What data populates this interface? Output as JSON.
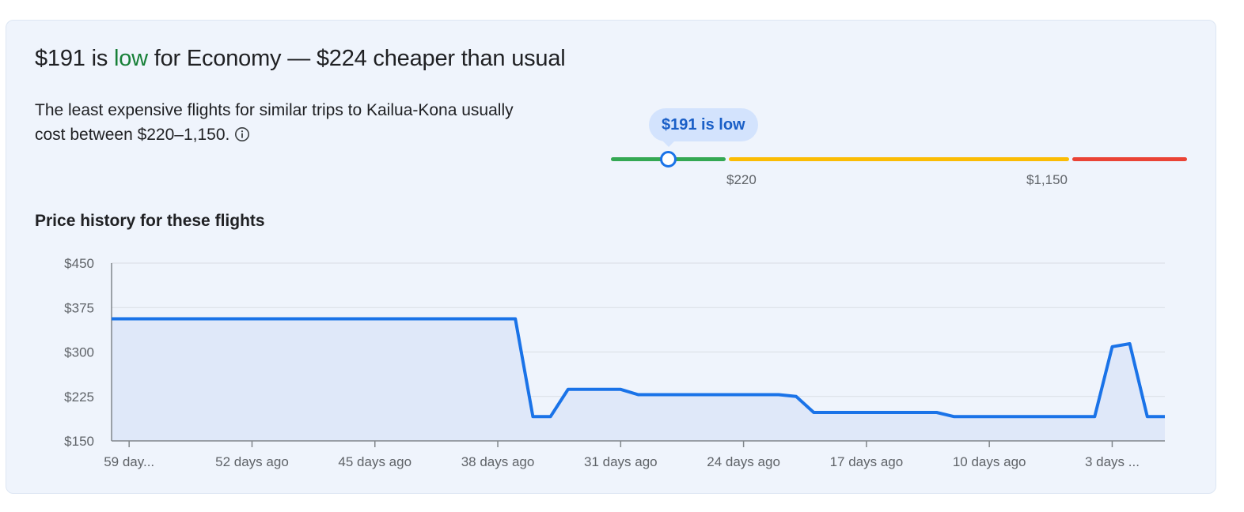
{
  "headline": {
    "price": "$191",
    "is": "is",
    "level": "low",
    "rest": "for Economy — $224 cheaper than usual"
  },
  "description": "The least expensive flights for similar trips to Kailua-Kona usually cost between $220–1,150.",
  "info_icon": "info-icon",
  "price_range": {
    "tooltip": "$191 is low",
    "low_label": "$220",
    "high_label": "$1,150",
    "current_value": 191,
    "colors": {
      "low": "#34a853",
      "typical": "#fbbc04",
      "high": "#ea4335",
      "marker": "#1a73e8"
    }
  },
  "section_title": "Price history for these flights",
  "chart_data": {
    "type": "area",
    "x_unit": "days ago",
    "x": [
      60,
      59,
      58,
      57,
      56,
      55,
      54,
      53,
      52,
      51,
      50,
      49,
      48,
      47,
      46,
      45,
      44,
      43,
      42,
      41,
      40,
      39,
      38,
      37,
      36,
      35,
      34,
      33,
      32,
      31,
      30,
      29,
      28,
      27,
      26,
      25,
      24,
      23,
      22,
      21,
      20,
      19,
      18,
      17,
      16,
      15,
      14,
      13,
      12,
      11,
      10,
      9,
      8,
      7,
      6,
      5,
      4,
      3,
      2,
      1,
      0
    ],
    "values": [
      356,
      356,
      356,
      356,
      356,
      356,
      356,
      356,
      356,
      356,
      356,
      356,
      356,
      356,
      356,
      356,
      356,
      356,
      356,
      356,
      356,
      356,
      356,
      356,
      191,
      191,
      237,
      237,
      237,
      237,
      228,
      228,
      228,
      228,
      228,
      228,
      228,
      228,
      228,
      225,
      198,
      198,
      198,
      198,
      198,
      198,
      198,
      198,
      191,
      191,
      191,
      191,
      191,
      191,
      191,
      191,
      191,
      309,
      314,
      191,
      191
    ],
    "ylim": [
      150,
      450
    ],
    "y_ticks": [
      "$450",
      "$375",
      "$300",
      "$225",
      "$150"
    ],
    "x_ticks": [
      {
        "x": 59,
        "label": "59 day..."
      },
      {
        "x": 52,
        "label": "52 days ago"
      },
      {
        "x": 45,
        "label": "45 days ago"
      },
      {
        "x": 38,
        "label": "38 days ago"
      },
      {
        "x": 31,
        "label": "31 days ago"
      },
      {
        "x": 24,
        "label": "24 days ago"
      },
      {
        "x": 17,
        "label": "17 days ago"
      },
      {
        "x": 10,
        "label": "10 days ago"
      },
      {
        "x": 3,
        "label": "3 days ..."
      }
    ],
    "grid": true,
    "colors": {
      "line": "#1a73e8",
      "fill": "#dfe8f9",
      "grid": "#d9dde3",
      "axis": "#80868b"
    }
  }
}
